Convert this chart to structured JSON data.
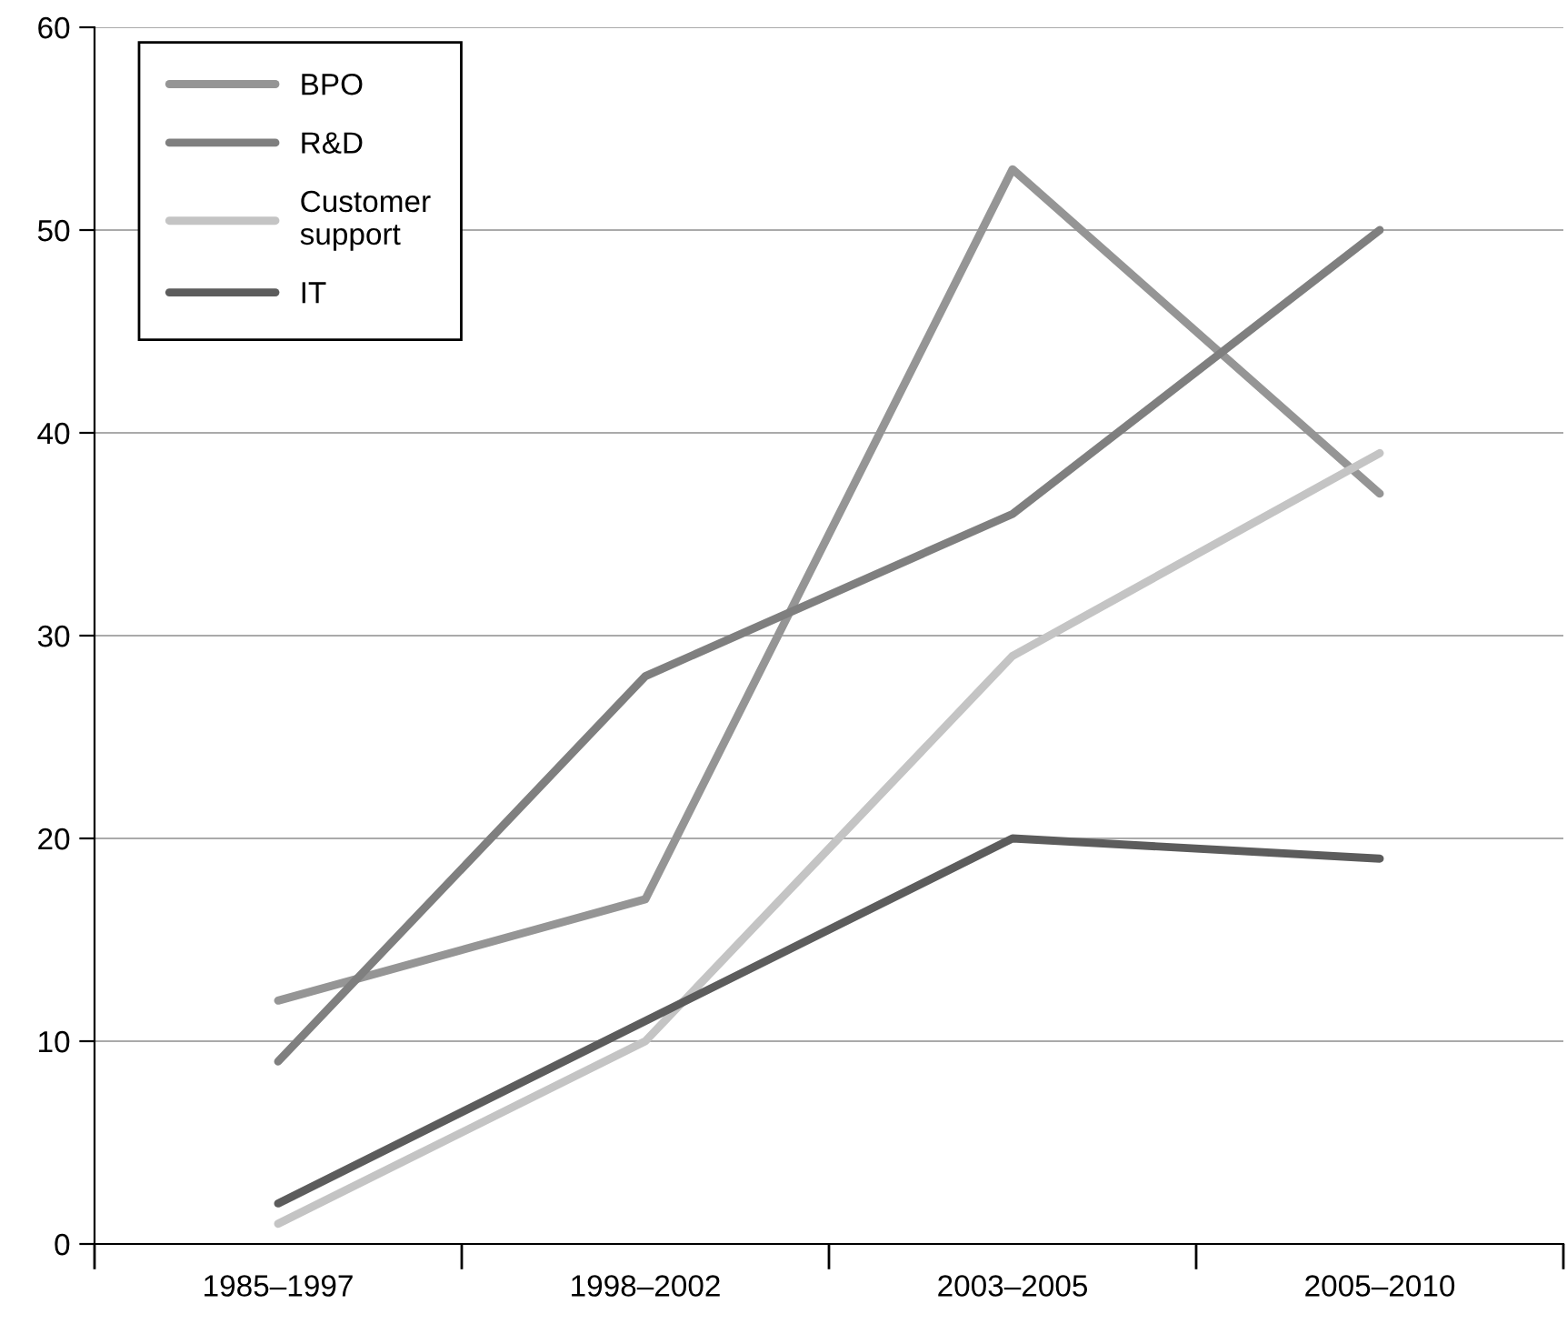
{
  "chart_data": {
    "type": "line",
    "categories": [
      "1985–1997",
      "1998–2002",
      "2003–2005",
      "2005–2010"
    ],
    "series": [
      {
        "name": "BPO",
        "color": "#959595",
        "values": [
          12,
          17,
          53,
          37
        ]
      },
      {
        "name": "R&D",
        "color": "#7f7f7f",
        "values": [
          9,
          28,
          36,
          50
        ]
      },
      {
        "name": "Customer\nsupport",
        "color": "#c4c4c4",
        "values": [
          1,
          10,
          29,
          39
        ]
      },
      {
        "name": "IT",
        "color": "#5c5c5c",
        "values": [
          2,
          11,
          20,
          19
        ]
      }
    ],
    "ylim": [
      0,
      60
    ],
    "yticks": [
      0,
      10,
      20,
      30,
      40,
      50,
      60
    ],
    "grid": "y",
    "legend": "top left",
    "marker": "none",
    "line_style": "solid"
  }
}
